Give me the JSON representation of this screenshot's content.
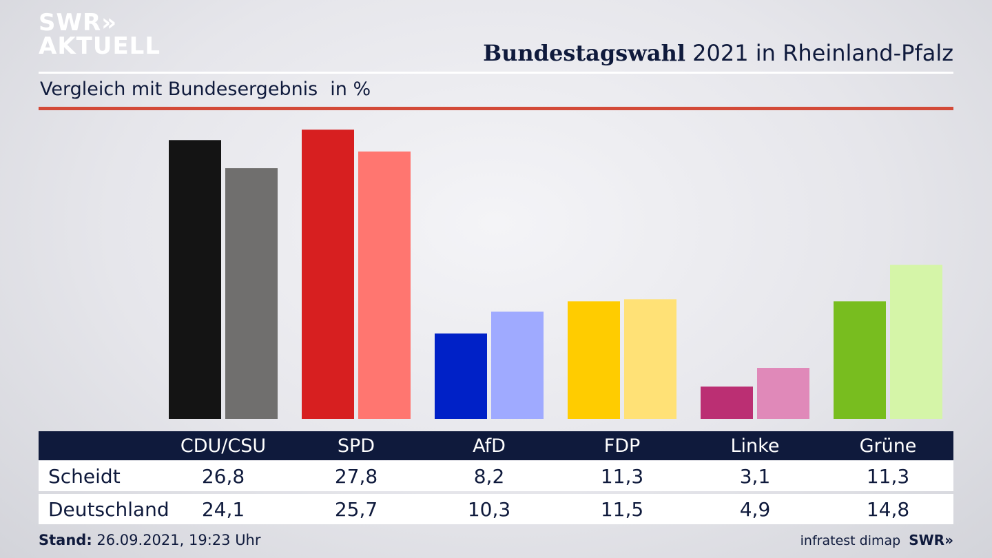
{
  "logo": {
    "line1": "SWR",
    "chevrons": "»",
    "line2": "AKTUELL"
  },
  "header": {
    "title_bold": "Bundestagswahl",
    "title_rest": "2021 in Rheinland-Pfalz"
  },
  "subtitle": {
    "text": "Vergleich mit Bundesergebnis",
    "unit": "in %"
  },
  "table": {
    "rows": [
      {
        "label": "Scheidt",
        "values": [
          "26,8",
          "27,8",
          "8,2",
          "11,3",
          "3,1",
          "11,3"
        ]
      },
      {
        "label": "Deutschland",
        "values": [
          "24,1",
          "25,7",
          "10,3",
          "11,5",
          "4,9",
          "14,8"
        ]
      }
    ]
  },
  "footer": {
    "stand_label": "Stand:",
    "stand_value": "26.09.2021, 19:23 Uhr",
    "source": "infratest dimap",
    "brand": "SWR»"
  },
  "chart_data": {
    "type": "bar",
    "categories": [
      "CDU/CSU",
      "SPD",
      "AfD",
      "FDP",
      "Linke",
      "Grüne"
    ],
    "series": [
      {
        "name": "Scheidt",
        "values": [
          26.8,
          27.8,
          8.2,
          11.3,
          3.1,
          11.3
        ]
      },
      {
        "name": "Deutschland",
        "values": [
          24.1,
          25.7,
          10.3,
          11.5,
          4.9,
          14.8
        ]
      }
    ],
    "colors": {
      "Scheidt": [
        "#141414",
        "#d71f20",
        "#0021c7",
        "#ffcc00",
        "#bb2f73",
        "#78bd1f"
      ],
      "Deutschland": [
        "#706f6e",
        "#ff7670",
        "#9faaff",
        "#ffe176",
        "#e089b9",
        "#d5f5a8"
      ]
    },
    "title": "",
    "xlabel": "",
    "ylabel": "",
    "grid": false,
    "legend": "table-below"
  }
}
